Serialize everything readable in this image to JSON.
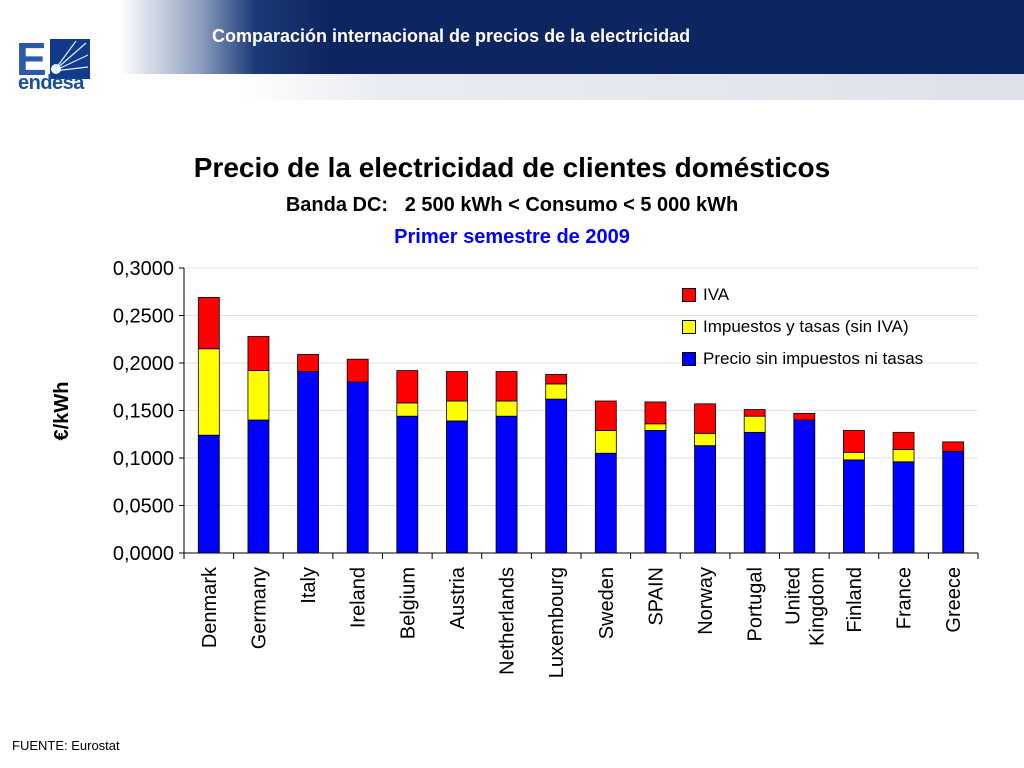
{
  "header": {
    "title": "Comparación internacional de precios de la electricidad",
    "logo_text": "endesa",
    "logo_letter": "E"
  },
  "footer": {
    "source": "FUENTE: Eurostat"
  },
  "colors": {
    "header_bg": "#0d2560",
    "iva": "#ff0000",
    "impuestos": "#ffff00",
    "precio": "#0000ff",
    "subtitle2": "#0000ff"
  },
  "chart_data": {
    "type": "bar",
    "stacked": true,
    "title": "Precio de la electricidad de clientes domésticos",
    "subtitle": "Banda DC:   2 500 kWh < Consumo < 5 000 kWh",
    "subtitle2": "Primer semestre de 2009",
    "xlabel": "",
    "ylabel": "€/kWh",
    "ylim": [
      0,
      0.3
    ],
    "yticks": [
      "0,0000",
      "0,0500",
      "0,1000",
      "0,1500",
      "0,2000",
      "0,2500",
      "0,3000"
    ],
    "grid": true,
    "legend_position": "top-right",
    "categories": [
      "Denmark",
      "Germany",
      "Italy",
      "Ireland",
      "Belgium",
      "Austria",
      "Netherlands",
      "Luxembourg",
      "Sweden",
      "SPAIN",
      "Norway",
      "Portugal",
      "United Kingdom",
      "Finland",
      "France",
      "Greece"
    ],
    "series": [
      {
        "name": "Precio sin impuestos ni tasas",
        "color": "#0000ff",
        "values": [
          0.124,
          0.14,
          0.191,
          0.18,
          0.144,
          0.139,
          0.144,
          0.162,
          0.105,
          0.129,
          0.113,
          0.127,
          0.14,
          0.098,
          0.096,
          0.107
        ]
      },
      {
        "name": "Impuestos y tasas (sin IVA)",
        "color": "#ffff00",
        "values": [
          0.091,
          0.052,
          0.0,
          0.0,
          0.014,
          0.021,
          0.016,
          0.016,
          0.024,
          0.007,
          0.013,
          0.017,
          0.0,
          0.008,
          0.013,
          0.0
        ]
      },
      {
        "name": "IVA",
        "color": "#ff0000",
        "values": [
          0.054,
          0.036,
          0.018,
          0.024,
          0.034,
          0.031,
          0.031,
          0.01,
          0.031,
          0.023,
          0.031,
          0.007,
          0.007,
          0.023,
          0.018,
          0.01
        ]
      }
    ]
  }
}
